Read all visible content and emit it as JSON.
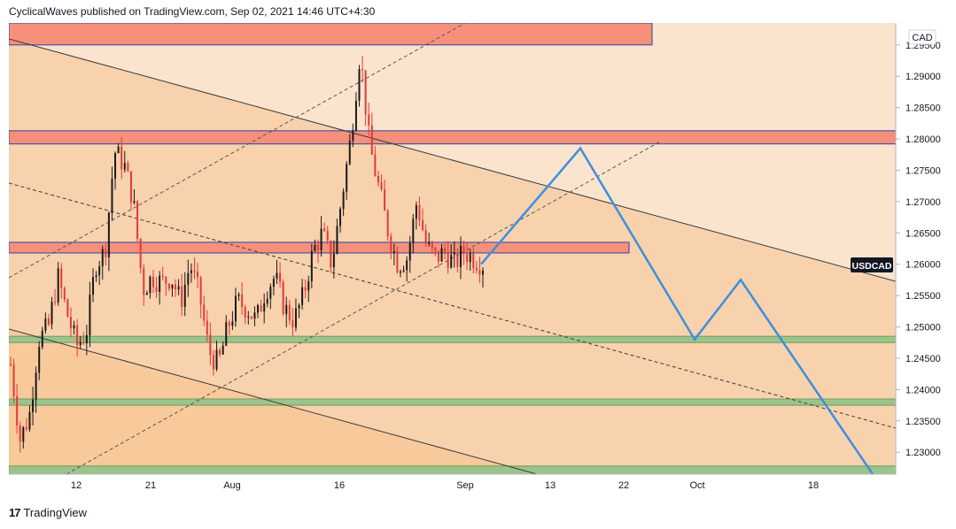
{
  "header": {
    "text": "CyclicalWaves published on TradingView.com, Sep 02, 2021 14:46 UTC+4:30"
  },
  "footer": {
    "logo": "17",
    "brand": "TradingView"
  },
  "chart_data": {
    "type": "candlestick",
    "symbol": "USDCAD",
    "currency": "CAD",
    "ylim": [
      1.2265,
      1.2985
    ],
    "y_ticks": [
      "1.29500",
      "1.29000",
      "1.28500",
      "1.28000",
      "1.27500",
      "1.27000",
      "1.26500",
      "1.26000",
      "1.25500",
      "1.25000",
      "1.24500",
      "1.24000",
      "1.23500",
      "1.23000"
    ],
    "x_ticks": [
      "12",
      "21",
      "Aug",
      "16",
      "Sep",
      "13",
      "22",
      "Oct",
      "18"
    ],
    "last_price_label": "USDCAD",
    "resistance_zones": [
      [
        1.295,
        1.2985
      ],
      [
        1.2792,
        1.2813
      ],
      [
        1.2618,
        1.2635
      ]
    ],
    "support_zones": [
      [
        1.2475,
        1.2485
      ],
      [
        1.2375,
        1.2385
      ],
      [
        1.2265,
        1.2278
      ]
    ],
    "projection_path": [
      1.26,
      1.2785,
      1.248,
      1.2575,
      1.2265
    ],
    "price_path": [
      1.244,
      1.232,
      1.236,
      1.248,
      1.25,
      1.258,
      1.252,
      1.247,
      1.249,
      1.26,
      1.262,
      1.278,
      1.276,
      1.27,
      1.256,
      1.258,
      1.257,
      1.258,
      1.254,
      1.26,
      1.255,
      1.246,
      1.244,
      1.25,
      1.254,
      1.253,
      1.251,
      1.256,
      1.258,
      1.253,
      1.251,
      1.255,
      1.262,
      1.265,
      1.26,
      1.27,
      1.28,
      1.294,
      1.279,
      1.272,
      1.265,
      1.26,
      1.261,
      1.27,
      1.263,
      1.261,
      1.262,
      1.26,
      1.262,
      1.261,
      1.26
    ]
  }
}
